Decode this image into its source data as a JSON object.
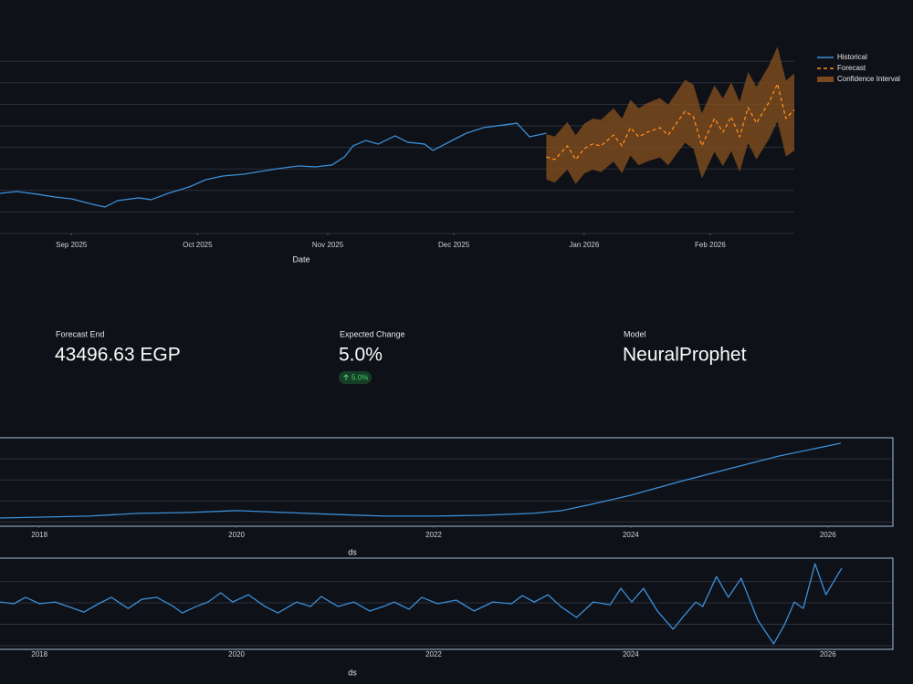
{
  "forecast_chart": {
    "type": "line",
    "x_label": "Date",
    "legend_position": "right",
    "xlim": [
      0,
      189
    ],
    "xticks": [
      {
        "value": 17,
        "label": "Sep 2025"
      },
      {
        "value": 47,
        "label": "Oct 2025"
      },
      {
        "value": 78,
        "label": "Nov 2025"
      },
      {
        "value": 108,
        "label": "Dec 2025"
      },
      {
        "value": 139,
        "label": "Jan 2026"
      },
      {
        "value": 169,
        "label": "Feb 2026"
      }
    ],
    "ylim": [
      32000,
      49500
    ],
    "ygrid": [
      34000,
      36000,
      38000,
      40000,
      42000,
      44000,
      46000,
      48000
    ],
    "band": {
      "name": "Confidence Interval",
      "color": "#7a4a1e",
      "of_series": 1,
      "upper": [
        41220,
        41020,
        42350,
        41130,
        42200,
        42680,
        42570,
        43640,
        42680,
        44430,
        43630,
        44110,
        44590,
        43970,
        45130,
        46280,
        45830,
        43170,
        45770,
        44550,
        46050,
        44240,
        47010,
        45620,
        47620,
        49370,
        46210,
        46860
      ],
      "lower": [
        37020,
        36710,
        37930,
        36600,
        37560,
        37930,
        37710,
        38670,
        37600,
        39240,
        38330,
        38700,
        39070,
        38340,
        39390,
        40430,
        39870,
        37100,
        39590,
        38260,
        39650,
        37730,
        40390,
        38890,
        40780,
        42420,
        39150,
        39690
      ]
    },
    "series": [
      {
        "name": "Historical",
        "color": "#3b8fd9",
        "dash": false,
        "x": [
          0,
          4,
          9,
          13,
          17,
          22,
          25,
          28,
          33,
          36,
          40,
          45,
          49,
          53,
          58,
          62,
          66,
          71,
          75,
          79,
          82,
          84,
          87,
          90,
          94,
          97,
          101,
          103,
          108,
          111,
          115,
          120,
          123,
          126,
          130
        ],
        "values": [
          35730,
          35900,
          35640,
          35390,
          35220,
          34710,
          34460,
          35050,
          35310,
          35140,
          35730,
          36320,
          37000,
          37340,
          37510,
          37760,
          38020,
          38270,
          38190,
          38360,
          39120,
          40140,
          40640,
          40310,
          41070,
          40480,
          40310,
          39710,
          40730,
          41320,
          41830,
          42090,
          42250,
          40980,
          41320
        ]
      },
      {
        "name": "Forecast",
        "color": "#ff8c1a",
        "dash": true,
        "x": [
          130,
          132,
          135,
          137,
          139,
          141,
          143,
          146,
          148,
          150,
          152,
          154,
          157,
          159,
          161,
          163,
          165,
          167,
          170,
          172,
          174,
          176,
          178,
          180,
          183,
          185,
          187,
          189
        ],
        "values": [
          39120,
          38870,
          40140,
          38870,
          39880,
          40310,
          40140,
          41150,
          40140,
          41830,
          40980,
          41410,
          41830,
          41150,
          42260,
          43360,
          42850,
          40140,
          42680,
          41410,
          42850,
          40980,
          43700,
          42260,
          44200,
          45900,
          42680,
          43500
        ]
      }
    ]
  },
  "metrics": [
    {
      "label": "Forecast End",
      "value": "43496.63 EGP"
    },
    {
      "label": "Expected Change",
      "value": "5.0%",
      "delta": "5.0%"
    },
    {
      "label": "Model",
      "value": "NeuralProphet"
    }
  ],
  "trend_chart": {
    "type": "line",
    "x_label": "ds",
    "xlim": [
      2017.6,
      2026.66
    ],
    "xticks": [
      2018,
      2020,
      2022,
      2024,
      2026
    ],
    "ylim": [
      -0.2,
      4
    ],
    "ygrid": [
      0,
      1,
      2,
      3
    ],
    "series": [
      {
        "color": "#3b8fd9",
        "dash": false,
        "x": [
          2017.6,
          2018.5,
          2019,
          2019.5,
          2020,
          2020.5,
          2021,
          2021.5,
          2022,
          2022.5,
          2023,
          2023.3,
          2023.6,
          2024,
          2024.5,
          2025,
          2025.5,
          2026.13
        ],
        "values": [
          0.19,
          0.28,
          0.41,
          0.45,
          0.54,
          0.45,
          0.36,
          0.28,
          0.28,
          0.32,
          0.41,
          0.54,
          0.84,
          1.27,
          1.92,
          2.53,
          3.13,
          3.74
        ]
      }
    ]
  },
  "seasonality_chart": {
    "type": "line",
    "x_label": "ds",
    "xlim": [
      2017.6,
      2026.66
    ],
    "xticks": [
      2018,
      2020,
      2022,
      2024,
      2026
    ],
    "ylim": [
      -2.17,
      2.09
    ],
    "ygrid": [
      -2,
      -1,
      0,
      1
    ],
    "series": [
      {
        "color": "#3b8fd9",
        "dash": false,
        "x": [
          2017.6,
          2017.74,
          2017.86,
          2018,
          2018.16,
          2018.29,
          2018.45,
          2018.6,
          2018.73,
          2018.9,
          2019.04,
          2019.19,
          2019.36,
          2019.45,
          2019.59,
          2019.71,
          2019.84,
          2019.96,
          2020.12,
          2020.29,
          2020.42,
          2020.61,
          2020.75,
          2020.86,
          2021.03,
          2021.19,
          2021.35,
          2021.49,
          2021.6,
          2021.75,
          2021.88,
          2022.04,
          2022.23,
          2022.41,
          2022.6,
          2022.79,
          2022.9,
          2023.02,
          2023.16,
          2023.29,
          2023.45,
          2023.62,
          2023.79,
          2023.9,
          2024.01,
          2024.13,
          2024.27,
          2024.43,
          2024.54,
          2024.66,
          2024.73,
          2024.87,
          2024.99,
          2025.12,
          2025.29,
          2025.45,
          2025.56,
          2025.66,
          2025.75,
          2025.87,
          2025.98,
          2026.14
        ],
        "values": [
          0.04,
          -0.04,
          0.26,
          -0.04,
          0.04,
          -0.17,
          -0.43,
          -0.04,
          0.26,
          -0.26,
          0.17,
          0.26,
          -0.17,
          -0.47,
          -0.17,
          0.04,
          0.47,
          0.04,
          0.38,
          -0.17,
          -0.47,
          0.04,
          -0.17,
          0.3,
          -0.17,
          0.04,
          -0.38,
          -0.17,
          0.04,
          -0.3,
          0.26,
          -0.04,
          0.13,
          -0.38,
          0.04,
          -0.04,
          0.34,
          0.04,
          0.38,
          -0.17,
          -0.68,
          0.04,
          -0.09,
          0.68,
          0.04,
          0.68,
          -0.38,
          -1.23,
          -0.6,
          0.04,
          -0.17,
          1.23,
          0.26,
          1.15,
          -0.81,
          -1.91,
          -1.02,
          0.04,
          -0.26,
          1.83,
          0.38,
          1.62
        ]
      }
    ]
  }
}
